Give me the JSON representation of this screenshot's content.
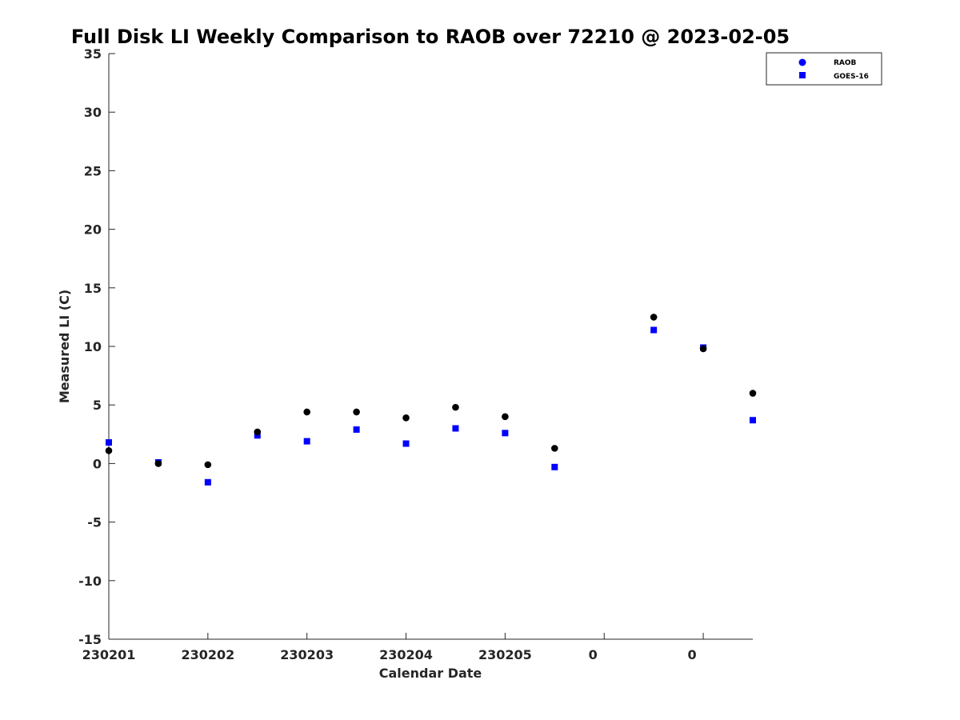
{
  "chart_data": {
    "type": "scatter",
    "title": "Full Disk LI Weekly Comparison to RAOB over 72210 @ 2023-02-05",
    "xlabel": "Calendar Date",
    "ylabel": "Measured LI (C)",
    "ylim": [
      -15,
      35
    ],
    "yticks": [
      -15,
      -10,
      -5,
      0,
      5,
      10,
      15,
      20,
      25,
      30,
      35
    ],
    "xlim": [
      0,
      13
    ],
    "xticks": [
      {
        "pos": 0,
        "label": "230201"
      },
      {
        "pos": 2,
        "label": "230202"
      },
      {
        "pos": 4,
        "label": "230203"
      },
      {
        "pos": 6,
        "label": "230204"
      },
      {
        "pos": 8,
        "label": "230205"
      },
      {
        "pos": 10,
        "label": "0"
      },
      {
        "pos": 12,
        "label": "0"
      }
    ],
    "grid": false,
    "legend_position": "top-right",
    "series": [
      {
        "name": "RAOB",
        "marker": "circle",
        "color": "#000000",
        "legend_color": "#0000ff",
        "x": [
          0,
          1,
          2,
          3,
          4,
          5,
          6,
          7,
          8,
          9,
          11,
          12,
          13
        ],
        "values": [
          1.1,
          0.0,
          -0.1,
          2.7,
          4.4,
          4.4,
          3.9,
          4.8,
          4.0,
          1.3,
          12.5,
          9.8,
          6.0
        ]
      },
      {
        "name": "GOES-16",
        "marker": "square",
        "color": "#0000ff",
        "legend_color": "#0000ff",
        "x": [
          0,
          1,
          2,
          3,
          4,
          5,
          6,
          7,
          8,
          9,
          11,
          12,
          13
        ],
        "values": [
          1.8,
          0.1,
          -1.6,
          2.4,
          1.9,
          2.9,
          1.7,
          3.0,
          2.6,
          -0.3,
          11.4,
          9.9,
          3.7
        ]
      }
    ]
  }
}
